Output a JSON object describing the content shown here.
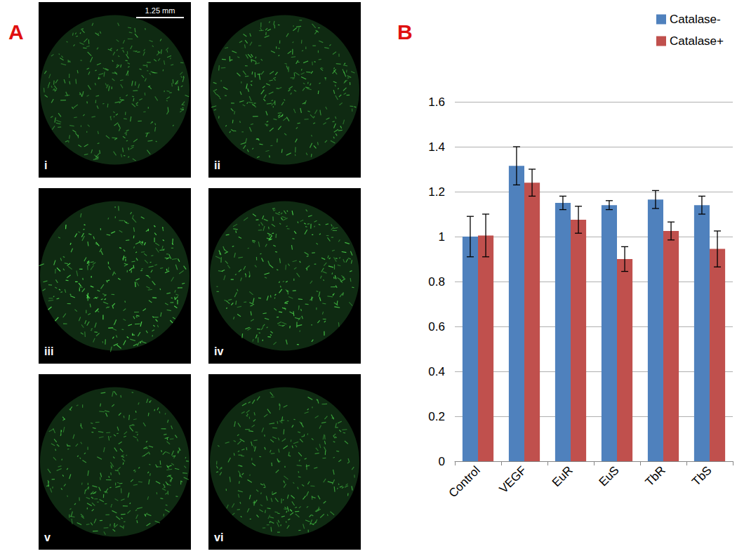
{
  "panels": {
    "A": {
      "label": "A",
      "images": [
        "i",
        "ii",
        "iii",
        "iv",
        "v",
        "vi"
      ],
      "scale_bar": "1.25 mm"
    },
    "B": {
      "label": "B"
    }
  },
  "chart_data": {
    "type": "bar",
    "categories": [
      "Control",
      "VEGF",
      "EuR",
      "EuS",
      "TbR",
      "TbS"
    ],
    "series": [
      {
        "name": "Catalase-",
        "color": "#4f81bd",
        "values": [
          1.0,
          1.315,
          1.15,
          1.14,
          1.165,
          1.14
        ],
        "errors": [
          0.09,
          0.085,
          0.03,
          0.02,
          0.04,
          0.04
        ]
      },
      {
        "name": "Catalase+",
        "color": "#c0504d",
        "values": [
          1.005,
          1.24,
          1.075,
          0.9,
          1.025,
          0.945
        ],
        "errors": [
          0.095,
          0.06,
          0.06,
          0.055,
          0.04,
          0.08
        ]
      }
    ],
    "ylim": [
      0,
      1.6
    ],
    "yticks": [
      0,
      0.2,
      0.4,
      0.6,
      0.8,
      1,
      1.2,
      1.4,
      1.6
    ],
    "grid": true,
    "legend": "top-right"
  }
}
